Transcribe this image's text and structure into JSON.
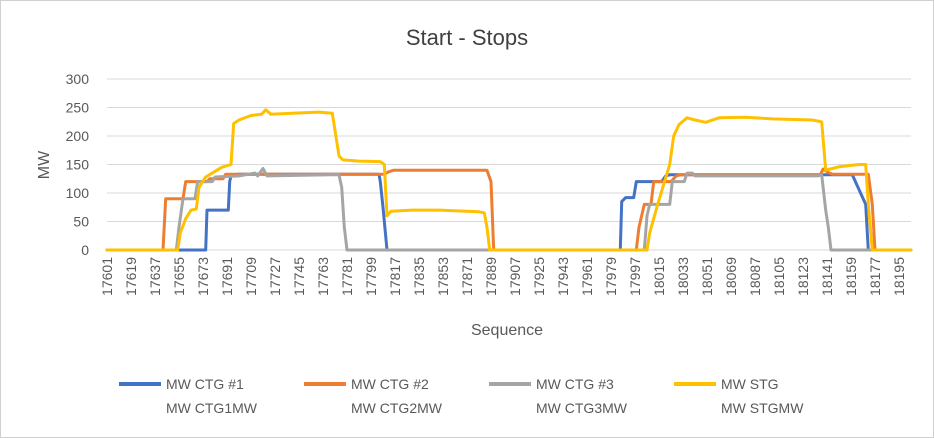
{
  "chart_data": {
    "type": "line",
    "title": "Start - Stops",
    "xlabel": "Sequence",
    "ylabel": "MW",
    "xlim": [
      17601,
      18204
    ],
    "ylim": [
      0,
      300
    ],
    "y_ticks": [
      0,
      50,
      100,
      150,
      200,
      250,
      300
    ],
    "x_ticks": [
      17601,
      17619,
      17637,
      17655,
      17673,
      17691,
      17709,
      17727,
      17745,
      17763,
      17781,
      17799,
      17817,
      17835,
      17853,
      17871,
      17889,
      17907,
      17925,
      17943,
      17961,
      17979,
      17997,
      18015,
      18033,
      18051,
      18069,
      18087,
      18105,
      18123,
      18141,
      18159,
      18177,
      18195
    ],
    "grid": true,
    "legend_position": "bottom",
    "series": [
      {
        "name": "MW CTG #1",
        "sub": "MW CTG1MW",
        "color": "#4472C4",
        "points": [
          [
            17601,
            0
          ],
          [
            17675,
            0
          ],
          [
            17676,
            70
          ],
          [
            17692,
            70
          ],
          [
            17693,
            120
          ],
          [
            17694,
            130
          ],
          [
            17699,
            133
          ],
          [
            17805,
            133
          ],
          [
            17806,
            120
          ],
          [
            17808,
            75
          ],
          [
            17811,
            0
          ],
          [
            17986,
            0
          ],
          [
            17987,
            85
          ],
          [
            17990,
            92
          ],
          [
            17996,
            92
          ],
          [
            17998,
            120
          ],
          [
            18017,
            120
          ],
          [
            18020,
            130
          ],
          [
            18023,
            132
          ],
          [
            18160,
            132
          ],
          [
            18170,
            80
          ],
          [
            18172,
            0
          ],
          [
            18204,
            0
          ]
        ]
      },
      {
        "name": "MW CTG #2",
        "sub": "MW CTG2MW",
        "color": "#ED7D31",
        "points": [
          [
            17601,
            0
          ],
          [
            17643,
            0
          ],
          [
            17645,
            90
          ],
          [
            17658,
            90
          ],
          [
            17660,
            120
          ],
          [
            17676,
            120
          ],
          [
            17678,
            125
          ],
          [
            17688,
            125
          ],
          [
            17690,
            133
          ],
          [
            17777,
            133
          ],
          [
            17779,
            133
          ],
          [
            17809,
            133
          ],
          [
            17812,
            137
          ],
          [
            17816,
            140
          ],
          [
            17886,
            140
          ],
          [
            17889,
            120
          ],
          [
            17891,
            0
          ],
          [
            17998,
            0
          ],
          [
            18000,
            40
          ],
          [
            18004,
            80
          ],
          [
            18009,
            80
          ],
          [
            18011,
            120
          ],
          [
            18024,
            120
          ],
          [
            18028,
            130
          ],
          [
            18031,
            132
          ],
          [
            18136,
            132
          ],
          [
            18138,
            142
          ],
          [
            18142,
            136
          ],
          [
            18145,
            133
          ],
          [
            18172,
            133
          ],
          [
            18175,
            80
          ],
          [
            18177,
            0
          ],
          [
            18204,
            0
          ]
        ]
      },
      {
        "name": "MW CTG #3",
        "sub": "MW CTG3MW",
        "color": "#A5A5A5",
        "points": [
          [
            17601,
            0
          ],
          [
            17653,
            0
          ],
          [
            17655,
            40
          ],
          [
            17658,
            90
          ],
          [
            17667,
            90
          ],
          [
            17669,
            120
          ],
          [
            17680,
            120
          ],
          [
            17682,
            128
          ],
          [
            17700,
            130
          ],
          [
            17712,
            135
          ],
          [
            17714,
            130
          ],
          [
            17718,
            143
          ],
          [
            17721,
            130
          ],
          [
            17770,
            132
          ],
          [
            17775,
            132
          ],
          [
            17777,
            110
          ],
          [
            17779,
            40
          ],
          [
            17781,
            0
          ],
          [
            18004,
            0
          ],
          [
            18006,
            60
          ],
          [
            18008,
            80
          ],
          [
            18023,
            80
          ],
          [
            18025,
            120
          ],
          [
            18034,
            120
          ],
          [
            18036,
            135
          ],
          [
            18040,
            135
          ],
          [
            18042,
            130
          ],
          [
            18134,
            130
          ],
          [
            18137,
            132
          ],
          [
            18140,
            70
          ],
          [
            18142,
            40
          ],
          [
            18144,
            0
          ],
          [
            18204,
            0
          ]
        ]
      },
      {
        "name": "MW STG",
        "sub": "MW STGMW",
        "color": "#FFC000",
        "points": [
          [
            17601,
            0
          ],
          [
            17654,
            0
          ],
          [
            17656,
            30
          ],
          [
            17660,
            55
          ],
          [
            17664,
            70
          ],
          [
            17668,
            72
          ],
          [
            17670,
            110
          ],
          [
            17675,
            128
          ],
          [
            17680,
            135
          ],
          [
            17687,
            145
          ],
          [
            17694,
            150
          ],
          [
            17696,
            222
          ],
          [
            17700,
            228
          ],
          [
            17709,
            236
          ],
          [
            17717,
            238
          ],
          [
            17720,
            246
          ],
          [
            17724,
            238
          ],
          [
            17740,
            240
          ],
          [
            17760,
            242
          ],
          [
            17770,
            240
          ],
          [
            17775,
            165
          ],
          [
            17778,
            158
          ],
          [
            17790,
            156
          ],
          [
            17806,
            155
          ],
          [
            17809,
            150
          ],
          [
            17811,
            60
          ],
          [
            17814,
            68
          ],
          [
            17830,
            70
          ],
          [
            17850,
            70
          ],
          [
            17880,
            67
          ],
          [
            17884,
            65
          ],
          [
            17886,
            40
          ],
          [
            17888,
            0
          ],
          [
            18006,
            0
          ],
          [
            18008,
            30
          ],
          [
            18014,
            80
          ],
          [
            18023,
            150
          ],
          [
            18026,
            200
          ],
          [
            18030,
            220
          ],
          [
            18036,
            232
          ],
          [
            18042,
            228
          ],
          [
            18050,
            224
          ],
          [
            18060,
            232
          ],
          [
            18080,
            233
          ],
          [
            18100,
            230
          ],
          [
            18130,
            228
          ],
          [
            18137,
            225
          ],
          [
            18140,
            140
          ],
          [
            18145,
            143
          ],
          [
            18150,
            146
          ],
          [
            18165,
            150
          ],
          [
            18170,
            150
          ],
          [
            18172,
            80
          ],
          [
            18175,
            0
          ],
          [
            18204,
            0
          ]
        ]
      }
    ]
  }
}
